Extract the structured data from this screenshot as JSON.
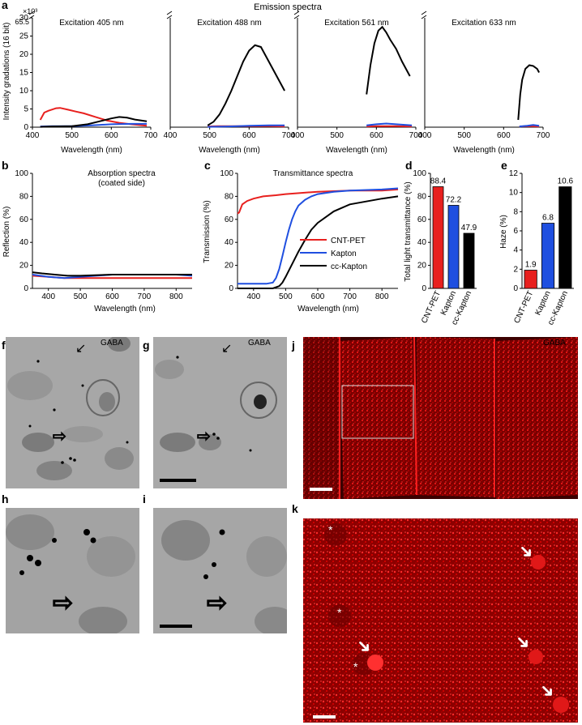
{
  "panels": {
    "a": {
      "letter": "a",
      "title": "Emission spectra",
      "ylabel": "Intensity gradations (16 bit)",
      "y_multiplier": "×10³",
      "y_top_label": "65.5",
      "yticks": [
        "0",
        "5",
        "10",
        "15",
        "20",
        "25",
        "30"
      ],
      "xlabel": "Wavelength (nm)",
      "subpanels": [
        {
          "title": "Excitation 405 nm",
          "xticks": [
            "400",
            "500",
            "600",
            "700"
          ]
        },
        {
          "title": "Excitation 488 nm",
          "xticks": [
            "400",
            "500",
            "600",
            "700"
          ]
        },
        {
          "title": "Excitation 561 nm",
          "xticks": [
            "400",
            "500",
            "600",
            "700"
          ]
        },
        {
          "title": "Excitation 633 nm",
          "xticks": [
            "400",
            "500",
            "600",
            "700"
          ]
        }
      ]
    },
    "b": {
      "letter": "b",
      "title_line1": "Absorption spectra",
      "title_line2": "(coated side)",
      "ylabel": "Reflection (%)",
      "xlabel": "Wavelength (nm)",
      "yticks": [
        "0",
        "20",
        "40",
        "60",
        "80",
        "100"
      ],
      "xticks": [
        "400",
        "500",
        "600",
        "700",
        "800"
      ]
    },
    "c": {
      "letter": "c",
      "title": "Transmittance spectra",
      "ylabel": "Transmission (%)",
      "xlabel": "Wavelength (nm)",
      "yticks": [
        "0",
        "20",
        "40",
        "60",
        "80",
        "100"
      ],
      "xticks": [
        "400",
        "500",
        "600",
        "700",
        "800"
      ]
    },
    "d": {
      "letter": "d",
      "ylabel": "Total light transmittance (%)",
      "yticks": [
        "0",
        "20",
        "40",
        "60",
        "80",
        "100"
      ]
    },
    "e": {
      "letter": "e",
      "ylabel": "Haze (%)",
      "yticks": [
        "0",
        "2",
        "4",
        "6",
        "8",
        "10",
        "12"
      ]
    },
    "f": {
      "letter": "f",
      "label": "GABA"
    },
    "g": {
      "letter": "g",
      "label": "GABA"
    },
    "h": {
      "letter": "h"
    },
    "i": {
      "letter": "i"
    },
    "j": {
      "letter": "j",
      "label": "GABA"
    },
    "k": {
      "letter": "k"
    }
  },
  "legend": [
    "CNT-PET",
    "Kapton",
    "cc-Kapton"
  ],
  "colors": {
    "CNT-PET": "#e8201e",
    "Kapton": "#1f4fe0",
    "cc-Kapton": "#000000"
  },
  "chart_data": [
    {
      "type": "line",
      "panel": "a1",
      "title": "Excitation 405 nm",
      "xlim": [
        400,
        700
      ],
      "ylim": [
        0,
        30
      ],
      "y_unit": "×10³",
      "series": [
        {
          "name": "CNT-PET",
          "x": [
            420,
            430,
            440,
            460,
            470,
            490,
            510,
            530,
            560,
            590,
            620,
            650,
            690
          ],
          "y": [
            2,
            4,
            4.5,
            5.2,
            5.3,
            4.8,
            4.3,
            3.8,
            2.8,
            1.8,
            1.2,
            0.8,
            0.4
          ]
        },
        {
          "name": "Kapton",
          "x": [
            420,
            450,
            500,
            550,
            600,
            650,
            690
          ],
          "y": [
            0.2,
            0.3,
            0.3,
            0.5,
            0.8,
            0.9,
            0.9
          ]
        },
        {
          "name": "cc-Kapton",
          "x": [
            420,
            450,
            500,
            540,
            570,
            600,
            620,
            640,
            660,
            690
          ],
          "y": [
            0.1,
            0.2,
            0.3,
            0.8,
            1.6,
            2.4,
            2.8,
            2.6,
            2.1,
            1.6
          ]
        }
      ]
    },
    {
      "type": "line",
      "panel": "a2",
      "title": "Excitation 488 nm",
      "xlim": [
        400,
        700
      ],
      "ylim": [
        0,
        30
      ],
      "y_unit": "×10³",
      "series": [
        {
          "name": "CNT-PET",
          "x": [
            495,
            520,
            550,
            600,
            650,
            690
          ],
          "y": [
            0.2,
            0.3,
            0.3,
            0.3,
            0.3,
            0.2
          ]
        },
        {
          "name": "Kapton",
          "x": [
            495,
            550,
            600,
            650,
            690
          ],
          "y": [
            0.1,
            0.2,
            0.4,
            0.5,
            0.5
          ]
        },
        {
          "name": "cc-Kapton",
          "x": [
            495,
            510,
            525,
            540,
            555,
            570,
            585,
            600,
            615,
            630,
            645,
            660,
            675,
            690
          ],
          "y": [
            0.5,
            1.5,
            3.5,
            6.5,
            10,
            14,
            18,
            21,
            22.5,
            22,
            19,
            16,
            13,
            10
          ]
        }
      ]
    },
    {
      "type": "line",
      "panel": "a3",
      "title": "Excitation 561 nm",
      "xlim": [
        400,
        700
      ],
      "ylim": [
        0,
        30
      ],
      "y_unit": "×10³",
      "series": [
        {
          "name": "CNT-PET",
          "x": [
            575,
            600,
            650,
            690
          ],
          "y": [
            0.2,
            0.3,
            0.3,
            0.2
          ]
        },
        {
          "name": "Kapton",
          "x": [
            575,
            600,
            625,
            650,
            690
          ],
          "y": [
            0.5,
            0.8,
            1.0,
            0.8,
            0.5
          ]
        },
        {
          "name": "cc-Kapton",
          "x": [
            575,
            585,
            595,
            605,
            615,
            625,
            635,
            650,
            665,
            685
          ],
          "y": [
            9,
            17,
            23,
            26.5,
            27.5,
            26,
            24,
            21.5,
            18,
            14
          ]
        }
      ]
    },
    {
      "type": "line",
      "panel": "a4",
      "title": "Excitation 633 nm",
      "xlim": [
        400,
        700
      ],
      "ylim": [
        0,
        30
      ],
      "y_unit": "×10³",
      "series": [
        {
          "name": "CNT-PET",
          "x": [
            640,
            660,
            690
          ],
          "y": [
            0.2,
            0.3,
            0.2
          ]
        },
        {
          "name": "Kapton",
          "x": [
            640,
            660,
            675,
            690
          ],
          "y": [
            0.2,
            0.4,
            0.6,
            0.4
          ]
        },
        {
          "name": "cc-Kapton",
          "x": [
            637,
            642,
            647,
            655,
            665,
            675,
            685,
            690
          ],
          "y": [
            2,
            9,
            13,
            16,
            17,
            16.8,
            16,
            15
          ]
        }
      ]
    },
    {
      "type": "line",
      "panel": "b",
      "title": "Absorption spectra (coated side)",
      "xlabel": "Wavelength (nm)",
      "ylabel": "Reflection (%)",
      "xlim": [
        350,
        850
      ],
      "ylim": [
        0,
        100
      ],
      "series": [
        {
          "name": "CNT-PET",
          "x": [
            350,
            400,
            450,
            500,
            600,
            700,
            800,
            850
          ],
          "y": [
            11,
            10,
            9,
            9,
            9,
            9,
            9,
            9
          ]
        },
        {
          "name": "Kapton",
          "x": [
            350,
            400,
            450,
            500,
            550,
            600,
            700,
            800,
            850
          ],
          "y": [
            12,
            10,
            9,
            10,
            11,
            12,
            12,
            12,
            11
          ]
        },
        {
          "name": "cc-Kapton",
          "x": [
            350,
            380,
            420,
            460,
            500,
            600,
            700,
            800,
            850
          ],
          "y": [
            14,
            13,
            12,
            11,
            11,
            12,
            12,
            12,
            12
          ]
        }
      ]
    },
    {
      "type": "line",
      "panel": "c",
      "title": "Transmittance spectra",
      "xlabel": "Wavelength (nm)",
      "ylabel": "Transmission (%)",
      "xlim": [
        350,
        850
      ],
      "ylim": [
        0,
        100
      ],
      "series": [
        {
          "name": "CNT-PET",
          "x": [
            350,
            355,
            365,
            380,
            400,
            430,
            470,
            500,
            550,
            600,
            700,
            800,
            850
          ],
          "y": [
            65,
            66,
            73,
            76,
            78,
            80,
            81,
            82,
            83,
            84,
            85,
            85,
            86
          ]
        },
        {
          "name": "Kapton",
          "x": [
            350,
            400,
            440,
            460,
            470,
            480,
            490,
            500,
            510,
            520,
            530,
            540,
            560,
            580,
            600,
            650,
            700,
            800,
            850
          ],
          "y": [
            4,
            4,
            4,
            5,
            9,
            17,
            28,
            40,
            51,
            60,
            67,
            72,
            77,
            80,
            82,
            84,
            85,
            86,
            87
          ]
        },
        {
          "name": "cc-Kapton",
          "x": [
            350,
            460,
            480,
            490,
            500,
            520,
            540,
            560,
            580,
            600,
            650,
            700,
            800,
            850
          ],
          "y": [
            0,
            0,
            2,
            5,
            10,
            21,
            32,
            42,
            51,
            57,
            67,
            73,
            78,
            80
          ]
        }
      ]
    },
    {
      "type": "bar",
      "panel": "d",
      "ylabel": "Total light transmittance (%)",
      "ylim": [
        0,
        100
      ],
      "categories": [
        "CNT-PET",
        "Kapton",
        "cc-Kapton"
      ],
      "values": [
        88.4,
        72.2,
        47.9
      ],
      "labels": [
        "88.4",
        "72.2",
        "47.9"
      ]
    },
    {
      "type": "bar",
      "panel": "e",
      "ylabel": "Haze (%)",
      "ylim": [
        0,
        12
      ],
      "categories": [
        "CNT-PET",
        "Kapton",
        "cc-Kapton"
      ],
      "values": [
        1.9,
        6.8,
        10.6
      ],
      "labels": [
        "1.9",
        "6.8",
        "10.6"
      ]
    }
  ]
}
